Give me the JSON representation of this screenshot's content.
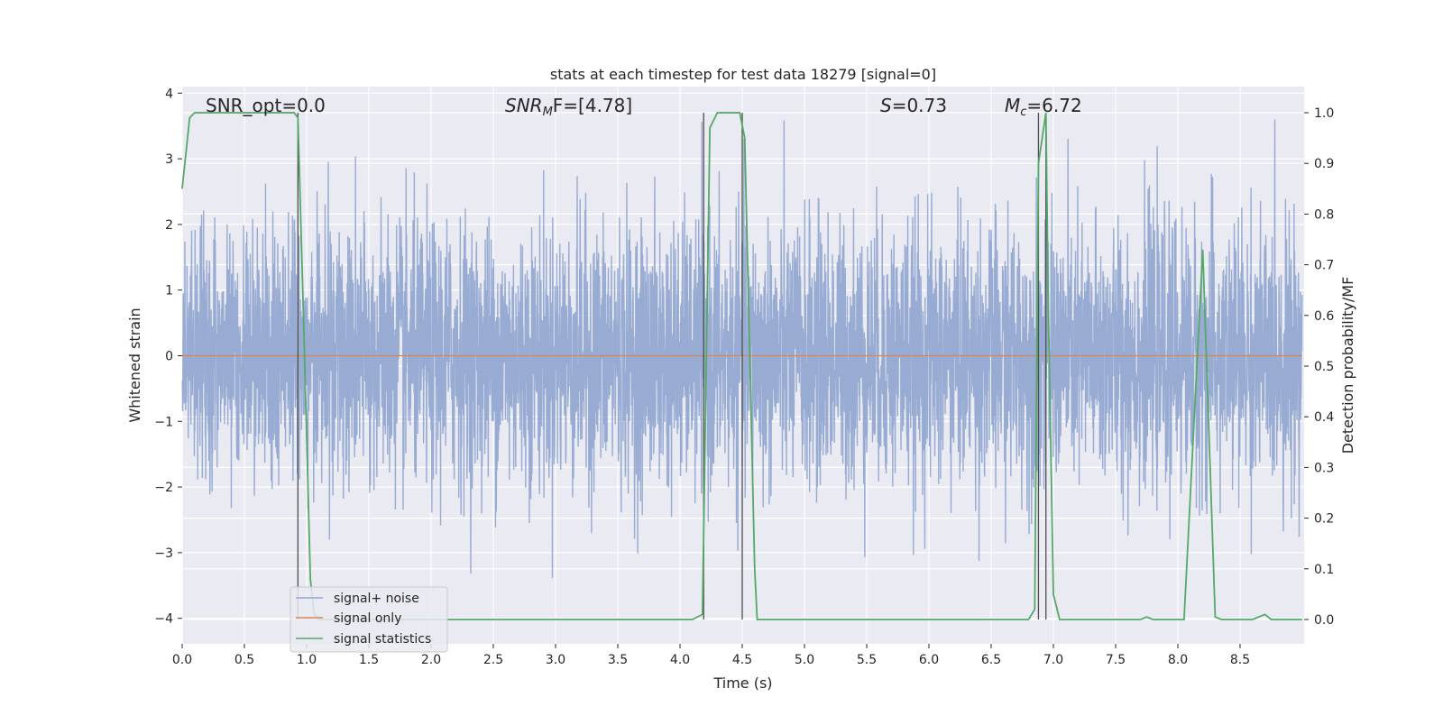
{
  "chart_data": {
    "type": "line",
    "title": "stats at each timestep for test data 18279 [signal=0]",
    "xlabel": "Time (s)",
    "ylabel_left": "Whitened strain",
    "ylabel_right": "Detection probability/MF",
    "xlim": [
      0.0,
      9.0
    ],
    "ylim_left": [
      -4.4,
      4.1
    ],
    "ylim_right": [
      -0.045,
      1.04
    ],
    "grid": true,
    "legend_position": "lower-left",
    "x_ticks": [
      0.0,
      0.5,
      1.0,
      1.5,
      2.0,
      2.5,
      3.0,
      3.5,
      4.0,
      4.5,
      5.0,
      5.5,
      6.0,
      6.5,
      7.0,
      7.5,
      8.0,
      8.5
    ],
    "x_tick_labels": [
      "0.0",
      "0.5",
      "1.0",
      "1.5",
      "2.0",
      "2.5",
      "3.0",
      "3.5",
      "4.0",
      "4.5",
      "5.0",
      "5.5",
      "6.0",
      "6.5",
      "7.0",
      "7.5",
      "8.0",
      "8.5"
    ],
    "y_left_ticks": [
      4,
      3,
      2,
      1,
      0,
      -1,
      -2,
      -3,
      -4
    ],
    "y_left_tick_labels": [
      "4",
      "3",
      "2",
      "1",
      "0",
      "−1",
      "−2",
      "−3",
      "−4"
    ],
    "y_right_ticks": [
      1.0,
      0.9,
      0.8,
      0.7,
      0.6,
      0.5,
      0.4,
      0.3,
      0.2,
      0.1,
      0.0
    ],
    "y_right_tick_labels": [
      "1.0",
      "0.9",
      "0.8",
      "0.7",
      "0.6",
      "0.5",
      "0.4",
      "0.3",
      "0.2",
      "0.1",
      "0.0"
    ],
    "annotations": {
      "snr_opt": "SNR_opt=0.0",
      "snr_mf_symbol": "SNR",
      "snr_mf_sub": "M",
      "snr_mf_rest": "F=[4.78]",
      "s_symbol": "S",
      "s_rest": "=0.73",
      "mc_symbol": "M",
      "mc_sub": "c",
      "mc_rest": "=6.72"
    },
    "series": [
      {
        "name": "signal+ noise",
        "color": "#92a8d1",
        "axis": "left",
        "kind": "noise",
        "sample_rate": 512,
        "duration_s": 9.0,
        "std": 1.0
      },
      {
        "name": "signal only",
        "color": "#dd8452",
        "axis": "left",
        "x": [
          0.0,
          9.0
        ],
        "y": [
          0.0,
          0.0
        ]
      },
      {
        "name": "signal statistics",
        "color": "#55a868",
        "axis": "right",
        "x": [
          0.0,
          0.06,
          0.1,
          0.9,
          0.93,
          0.98,
          1.03,
          1.06,
          1.1,
          4.1,
          4.18,
          4.24,
          4.3,
          4.48,
          4.52,
          4.6,
          4.62,
          6.8,
          6.85,
          6.88,
          6.94,
          6.96,
          7.0,
          7.05,
          7.7,
          7.75,
          7.8,
          8.05,
          8.2,
          8.3,
          8.35,
          8.6,
          8.7,
          8.75,
          9.0
        ],
        "y": [
          0.85,
          0.99,
          1.0,
          1.0,
          0.99,
          0.55,
          0.08,
          0.01,
          0.0,
          0.0,
          0.01,
          0.97,
          1.0,
          1.0,
          0.95,
          0.1,
          0.0,
          0.0,
          0.02,
          0.9,
          1.0,
          0.6,
          0.05,
          0.0,
          0.0,
          0.005,
          0.0,
          0.0,
          0.73,
          0.005,
          0.0,
          0.0,
          0.01,
          0.0,
          0.0
        ]
      }
    ],
    "vertical_markers": [
      0.93,
      4.19,
      4.5,
      6.88,
      6.94
    ],
    "marker_color": "#4d4d4d"
  }
}
